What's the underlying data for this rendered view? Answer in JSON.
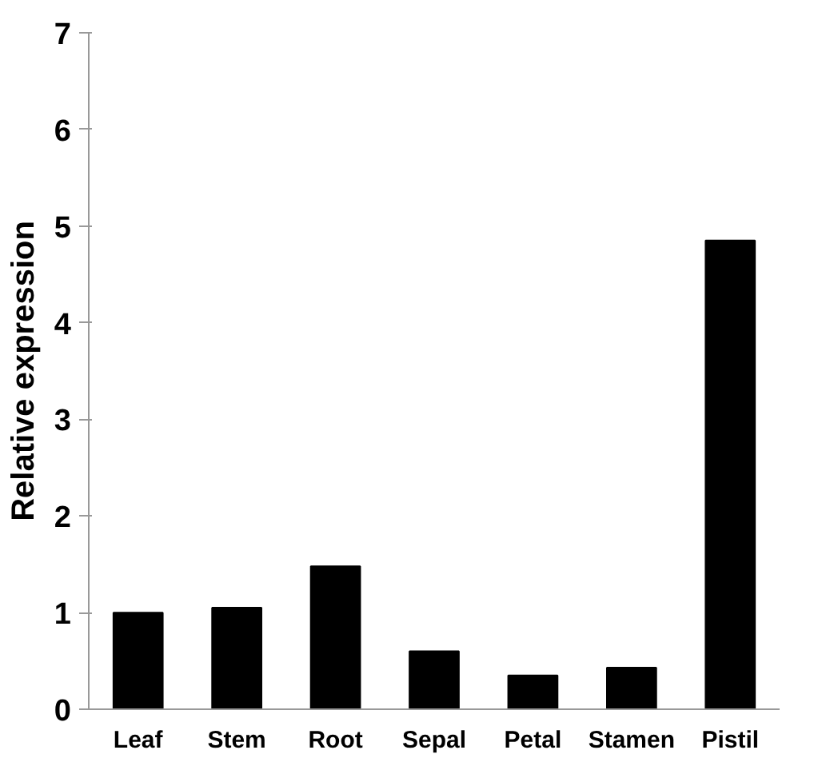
{
  "chart_data": {
    "type": "bar",
    "ylabel": "Relative expression",
    "categories": [
      "Leaf",
      "Stem",
      "Root",
      "Sepal",
      "Petal",
      "Stamen",
      "Pistil"
    ],
    "values": [
      1.0,
      1.05,
      1.48,
      0.6,
      0.35,
      0.43,
      4.85
    ],
    "color": "#000000",
    "ylim": [
      0,
      7
    ],
    "yticks": [
      0,
      1,
      2,
      3,
      4,
      5,
      6,
      7
    ],
    "grid": false
  }
}
